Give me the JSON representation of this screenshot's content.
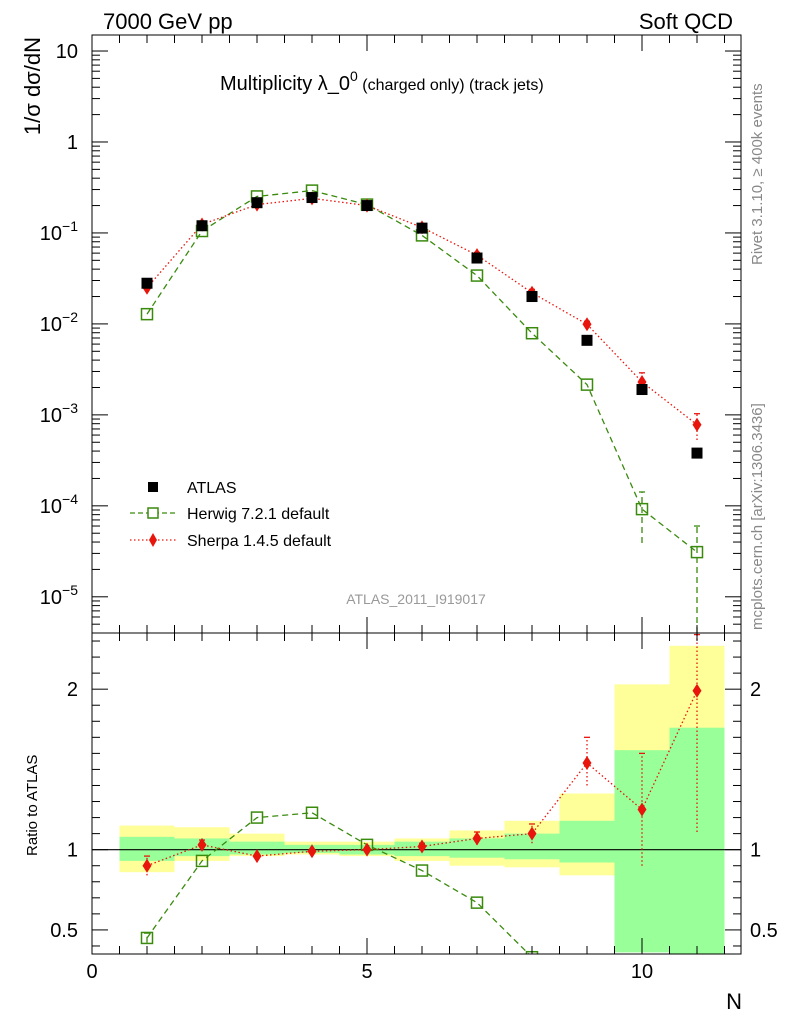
{
  "header": {
    "left": "7000 GeV pp",
    "right": "Soft QCD"
  },
  "side_text": {
    "rivet": "Rivet 3.1.10, ≥ 400k events",
    "mcplots": "mcplots.cern.ch [arXiv:1306.3436]"
  },
  "chart_data": [
    {
      "type": "scatter",
      "panel": "main",
      "title_main": "Multiplicity λ_0",
      "title_sup": "0",
      "title_sub": " (charged only) (track jets)",
      "ylabel": "1/σ dσ/dN",
      "yscale": "log",
      "ylim": [
        4e-06,
        15
      ],
      "xlim": [
        0,
        11.8
      ],
      "yticks": [
        {
          "value": 10,
          "label": "10"
        },
        {
          "value": 1,
          "label": "1"
        },
        {
          "value": 0.1,
          "base": "10",
          "exp": "−1"
        },
        {
          "value": 0.01,
          "base": "10",
          "exp": "−2"
        },
        {
          "value": 0.001,
          "base": "10",
          "exp": "−3"
        },
        {
          "value": 0.0001,
          "base": "10",
          "exp": "−4"
        },
        {
          "value": 1e-05,
          "base": "10",
          "exp": "−5"
        }
      ],
      "watermark": "ATLAS_2011_I919017",
      "legend": [
        "ATLAS",
        "Herwig 7.2.1 default",
        "Sherpa 1.4.5 default"
      ],
      "legend_position": "bottom-left",
      "x": [
        1,
        2,
        3,
        4,
        5,
        6,
        7,
        8,
        9,
        10,
        11
      ],
      "series": [
        {
          "name": "ATLAS",
          "color": "#000000",
          "marker": "filled-square",
          "values": [
            0.028,
            0.12,
            0.215,
            0.245,
            0.2,
            0.113,
            0.053,
            0.02,
            0.0066,
            0.0019,
            0.00038
          ]
        },
        {
          "name": "Herwig 7.2.1 default",
          "color": "#3a8a0e",
          "marker": "open-square",
          "line": "dashed",
          "values": [
            0.0128,
            0.105,
            0.252,
            0.292,
            0.205,
            0.094,
            0.034,
            0.0079,
            0.00215,
            9.2e-05,
            3.1e-05
          ],
          "err_lo": [
            0,
            0,
            0,
            0,
            0,
            0,
            0,
            0,
            0,
            5.3e-05,
            3.1e-05
          ],
          "err_hi": [
            0,
            0,
            0,
            0,
            0,
            0,
            0,
            0,
            0,
            5e-05,
            2.9e-05
          ]
        },
        {
          "name": "Sherpa 1.4.5 default",
          "color": "#e8150c",
          "marker": "filled-diamond",
          "line": "dotted",
          "values": [
            0.025,
            0.124,
            0.205,
            0.24,
            0.2,
            0.115,
            0.057,
            0.022,
            0.0099,
            0.0023,
            0.00078
          ],
          "err_lo": [
            0,
            0,
            0,
            0,
            0,
            0,
            0.004,
            0.002,
            0.0008,
            0.0006,
            0.00025
          ],
          "err_hi": [
            0,
            0,
            0,
            0,
            0,
            0,
            0.004,
            0.002,
            0.0008,
            0.0006,
            0.00025
          ]
        }
      ]
    },
    {
      "type": "scatter",
      "panel": "ratio",
      "ylabel": "Ratio to ATLAS",
      "xlabel": "N",
      "ylim": [
        0.35,
        2.35
      ],
      "xlim": [
        0,
        11.8
      ],
      "yticks": [
        {
          "value": 2,
          "label": "2"
        },
        {
          "value": 1,
          "label": "1"
        },
        {
          "value": 0.5,
          "label": "0.5"
        }
      ],
      "xticks": [
        {
          "value": 0,
          "label": "0"
        },
        {
          "value": 5,
          "label": "5"
        },
        {
          "value": 10,
          "label": "10"
        }
      ],
      "bands": [
        {
          "x0": 0.5,
          "x1": 1.5,
          "yellow": [
            0.86,
            1.15
          ],
          "green": [
            0.93,
            1.08
          ]
        },
        {
          "x0": 1.5,
          "x1": 2.5,
          "yellow": [
            0.93,
            1.14
          ],
          "green": [
            0.96,
            1.07
          ]
        },
        {
          "x0": 2.5,
          "x1": 3.5,
          "yellow": [
            0.96,
            1.1
          ],
          "green": [
            0.97,
            1.05
          ]
        },
        {
          "x0": 3.5,
          "x1": 4.5,
          "yellow": [
            0.97,
            1.05
          ],
          "green": [
            0.98,
            1.03
          ]
        },
        {
          "x0": 4.5,
          "x1": 5.5,
          "yellow": [
            0.96,
            1.05
          ],
          "green": [
            0.97,
            1.03
          ]
        },
        {
          "x0": 5.5,
          "x1": 6.5,
          "yellow": [
            0.93,
            1.07
          ],
          "green": [
            0.96,
            1.05
          ]
        },
        {
          "x0": 6.5,
          "x1": 7.5,
          "yellow": [
            0.9,
            1.12
          ],
          "green": [
            0.95,
            1.07
          ]
        },
        {
          "x0": 7.5,
          "x1": 8.5,
          "yellow": [
            0.89,
            1.18
          ],
          "green": [
            0.94,
            1.1
          ]
        },
        {
          "x0": 8.5,
          "x1": 9.5,
          "yellow": [
            0.84,
            1.35
          ],
          "green": [
            0.92,
            1.18
          ]
        },
        {
          "x0": 9.5,
          "x1": 10.5,
          "yellow": [
            0.63,
            2.03
          ],
          "green": [
            0.36,
            1.62
          ]
        },
        {
          "x0": 10.5,
          "x1": 11.5,
          "yellow": [
            0.35,
            2.27
          ],
          "green": [
            0.35,
            1.76
          ]
        }
      ],
      "x": [
        1,
        2,
        3,
        4,
        5,
        6,
        7,
        8,
        9,
        10,
        11
      ],
      "series": [
        {
          "name": "Herwig 7.2.1 default",
          "color": "#3a8a0e",
          "marker": "open-square",
          "line": "dashed",
          "values": [
            0.45,
            0.93,
            1.2,
            1.23,
            1.03,
            0.87,
            0.67,
            0.33,
            null,
            null,
            null
          ],
          "err_lo": [
            0.03,
            0,
            0,
            0,
            0,
            0,
            0,
            0,
            0,
            0,
            0
          ],
          "err_hi": [
            0.03,
            0,
            0,
            0,
            0,
            0,
            0,
            0,
            0,
            0,
            0
          ]
        },
        {
          "name": "Sherpa 1.4.5 default",
          "color": "#e8150c",
          "marker": "filled-diamond",
          "line": "dotted",
          "values": [
            0.9,
            1.03,
            0.96,
            0.99,
            1.0,
            1.02,
            1.07,
            1.1,
            1.54,
            1.25,
            1.99
          ],
          "err_lo": [
            0.06,
            0.03,
            0,
            0,
            0,
            0.02,
            0.04,
            0.06,
            0.14,
            0.35,
            0.88
          ],
          "err_hi": [
            0.06,
            0.03,
            0,
            0,
            0,
            0.02,
            0.04,
            0.06,
            0.16,
            0.35,
            0.35
          ]
        }
      ]
    }
  ]
}
